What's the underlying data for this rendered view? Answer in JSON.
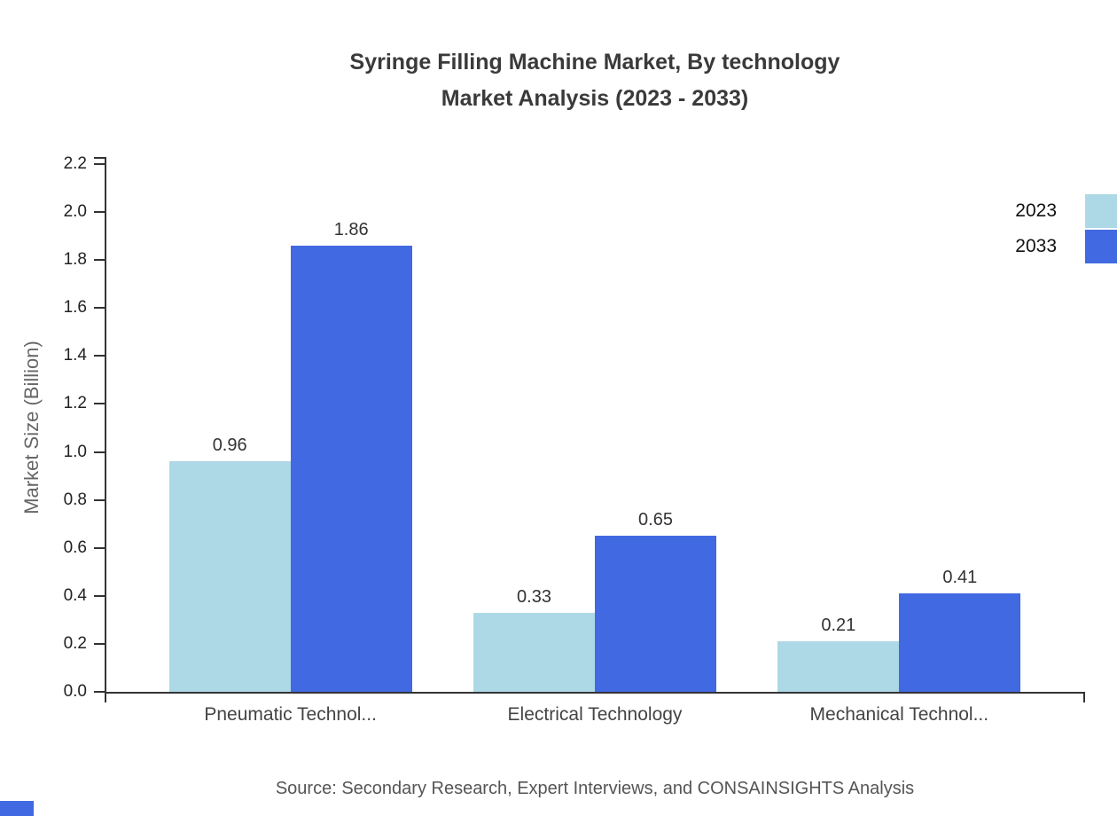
{
  "title": {
    "line1": "Syringe Filling Machine Market, By technology",
    "line2": "Market Analysis (2023 - 2033)"
  },
  "chart_data": {
    "type": "bar",
    "categories": [
      "Pneumatic Technol...",
      "Electrical Technology",
      "Mechanical Technol..."
    ],
    "series": [
      {
        "name": "2023",
        "color": "#ADD8E6",
        "values": [
          0.96,
          0.33,
          0.21
        ]
      },
      {
        "name": "2033",
        "color": "#4169E1",
        "values": [
          1.86,
          0.65,
          0.41
        ]
      }
    ],
    "xlabel": "",
    "ylabel": "Market Size (Billion)",
    "ylim": [
      0,
      2.2
    ],
    "yticks": [
      0.0,
      0.2,
      0.4,
      0.6,
      0.8,
      1.0,
      1.2,
      1.4,
      1.6,
      1.8,
      2.0,
      2.2
    ],
    "grid": false,
    "legend_position": "top-right",
    "value_labels_shown": true
  },
  "footer": {
    "source": "Source: Secondary Research, Expert Interviews, and CONSAINSIGHTS Analysis"
  },
  "colors": {
    "axis": "#333333",
    "series_2023": "#ADD8E6",
    "series_2033": "#4169E1",
    "brand_mark": "#4169E1"
  }
}
